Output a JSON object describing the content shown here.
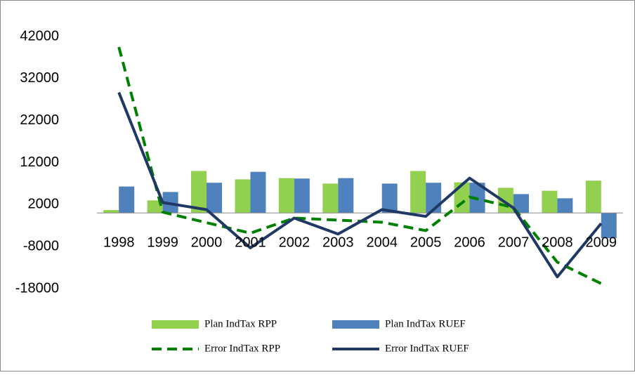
{
  "chart_data": {
    "type": "bar-line",
    "categories": [
      "1998",
      "1999",
      "2000",
      "2001",
      "2002",
      "2003",
      "2004",
      "2005",
      "2006",
      "2007",
      "2008",
      "2009"
    ],
    "series": [
      {
        "name": "Plan IndTax RPP",
        "type": "bar",
        "color": "#92d050",
        "values": [
          700,
          3000,
          10000,
          8000,
          8300,
          7000,
          0,
          10000,
          7300,
          6000,
          5300,
          7700
        ]
      },
      {
        "name": "Plan IndTax RUEF",
        "type": "bar",
        "color": "#4f81bd",
        "values": [
          6300,
          5000,
          7200,
          9800,
          8200,
          8300,
          7000,
          7200,
          7200,
          4500,
          3500,
          -6000
        ]
      },
      {
        "name": "Error IndTax RPP",
        "type": "line",
        "dashed": true,
        "color": "#008000",
        "values": [
          39500,
          200,
          -2300,
          -4800,
          -1200,
          -1700,
          -2200,
          -4200,
          3800,
          1300,
          -11700,
          -16800
        ]
      },
      {
        "name": "Error IndTax RUEF",
        "type": "line",
        "dashed": false,
        "color": "#1f3864",
        "values": [
          28700,
          2500,
          800,
          -8300,
          -1200,
          -5000,
          800,
          -800,
          8300,
          1200,
          -15200,
          -2500
        ]
      }
    ],
    "ylim": [
      -18000,
      42000
    ],
    "yticks": [
      -18000,
      -8000,
      2000,
      12000,
      22000,
      32000,
      42000
    ],
    "legend": "bottom"
  }
}
